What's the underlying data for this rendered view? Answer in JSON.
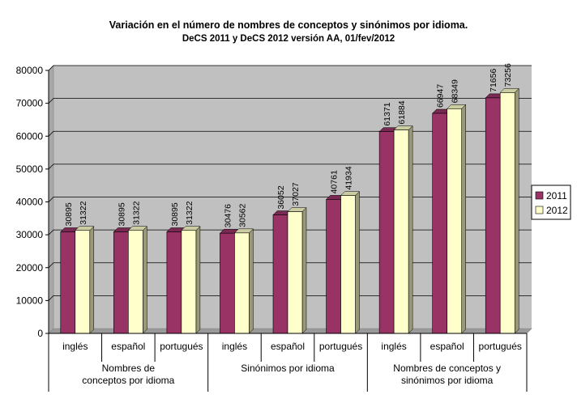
{
  "chart_data": {
    "type": "bar",
    "title": "Variación en el número de nombres de conceptos y sinónimos por idioma.",
    "subtitle": "DeCS 2011 y DeCS 2012 versión AA, 01/fev/2012",
    "categories": [
      "inglés",
      "español",
      "portugués",
      "inglés",
      "español",
      "portugués",
      "inglés",
      "español",
      "portugués"
    ],
    "groups": [
      {
        "label_lines": [
          "Nombres de",
          "conceptos por idioma"
        ],
        "start": 0,
        "count": 3
      },
      {
        "label_lines": [
          "Sinónimos por idioma"
        ],
        "start": 3,
        "count": 3
      },
      {
        "label_lines": [
          "Nombres de conceptos y",
          "sinónimos por idioma"
        ],
        "start": 6,
        "count": 3
      }
    ],
    "series": [
      {
        "name": "2011",
        "color": "#993366",
        "values": [
          30895,
          30895,
          30895,
          30476,
          36052,
          40761,
          61371,
          66947,
          71656
        ]
      },
      {
        "name": "2012",
        "color": "#FFFFCC",
        "values": [
          31322,
          31322,
          31322,
          30562,
          37027,
          41934,
          61884,
          68349,
          73256
        ]
      }
    ],
    "ylim": [
      0,
      80000
    ],
    "yticks": [
      0,
      10000,
      20000,
      30000,
      40000,
      50000,
      60000,
      70000,
      80000
    ],
    "grid": true,
    "plot_background": "#C0C0C0",
    "legend_position": "right"
  }
}
